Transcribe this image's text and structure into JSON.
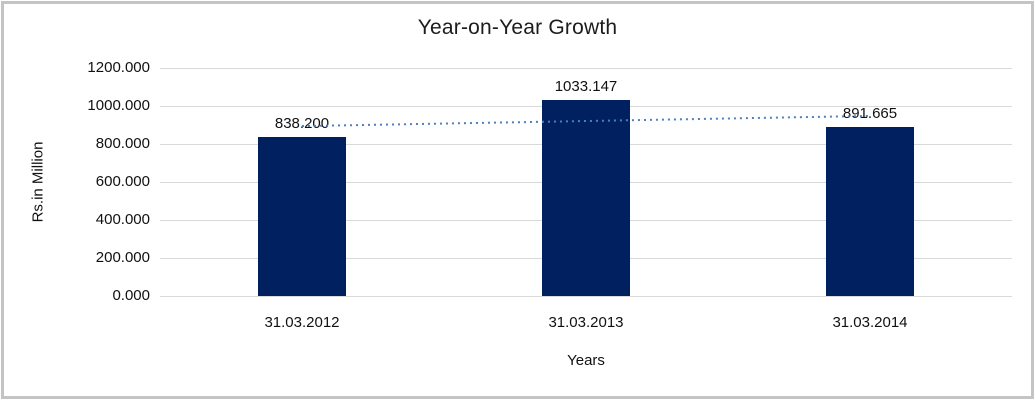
{
  "chart_data": {
    "type": "bar",
    "title": "Year-on-Year Growth",
    "xlabel": "Years",
    "ylabel": "Rs.in Million",
    "categories": [
      "31.03.2012",
      "31.03.2013",
      "31.03.2014"
    ],
    "values": [
      838.2,
      1033.147,
      891.665
    ],
    "data_labels": [
      "838.200",
      "1033.147",
      "891.665"
    ],
    "ylim": [
      0,
      1200
    ],
    "ytick_step": 200,
    "ytick_labels": [
      "0.000",
      "200.000",
      "400.000",
      "600.000",
      "800.000",
      "1000.000",
      "1200.000"
    ],
    "grid": true,
    "legend": "none",
    "bar_color": "#002060",
    "gridline_color": "#d9d9d9",
    "frame_border_color": "#c4c4c4",
    "trendline": {
      "type": "linear",
      "style": "dotted",
      "color": "#4e80bc",
      "values": [
        894.3,
        921.0,
        947.7
      ]
    }
  }
}
